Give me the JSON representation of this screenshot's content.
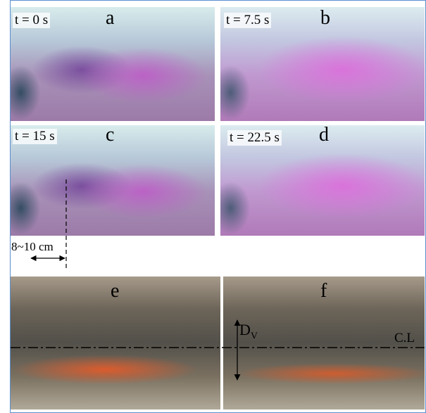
{
  "panels": [
    {
      "time": "t = 0 s",
      "letter": "a"
    },
    {
      "time": "t = 7.5 s",
      "letter": "b"
    },
    {
      "time": "t = 15 s",
      "letter": "c"
    },
    {
      "time": "t = 22.5 s",
      "letter": "d"
    },
    {
      "letter": "e"
    },
    {
      "letter": "f"
    }
  ],
  "annotations": {
    "scale": "8~10 cm",
    "depth": "D",
    "depth_sub": "V",
    "centerline": "C.L"
  }
}
